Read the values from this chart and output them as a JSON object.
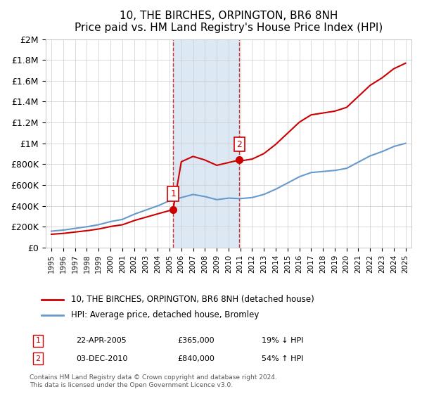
{
  "title": "10, THE BIRCHES, ORPINGTON, BR6 8NH",
  "subtitle": "Price paid vs. HM Land Registry's House Price Index (HPI)",
  "legend_line1": "10, THE BIRCHES, ORPINGTON, BR6 8NH (detached house)",
  "legend_line2": "HPI: Average price, detached house, Bromley",
  "footnote": "Contains HM Land Registry data © Crown copyright and database right 2024.\nThis data is licensed under the Open Government Licence v3.0.",
  "sale1_label": "1",
  "sale1_date": "22-APR-2005",
  "sale1_price": "£365,000",
  "sale1_hpi": "19% ↓ HPI",
  "sale1_year": 2005.31,
  "sale1_value": 365000,
  "sale2_label": "2",
  "sale2_date": "03-DEC-2010",
  "sale2_price": "£840,000",
  "sale2_hpi": "54% ↑ HPI",
  "sale2_year": 2010.92,
  "sale2_value": 840000,
  "red_color": "#cc0000",
  "blue_color": "#6699cc",
  "shaded_color": "#dce9f5",
  "marker_border_color": "#cc0000",
  "ylim": [
    0,
    2000000
  ],
  "yticks": [
    0,
    200000,
    400000,
    600000,
    800000,
    1000000,
    1200000,
    1400000,
    1600000,
    1800000,
    2000000
  ],
  "ytick_labels": [
    "£0",
    "£200K",
    "£400K",
    "£600K",
    "£800K",
    "£1M",
    "£1.2M",
    "£1.4M",
    "£1.6M",
    "£1.8M",
    "£2M"
  ],
  "xlim_start": 1994.5,
  "xlim_end": 2025.5
}
